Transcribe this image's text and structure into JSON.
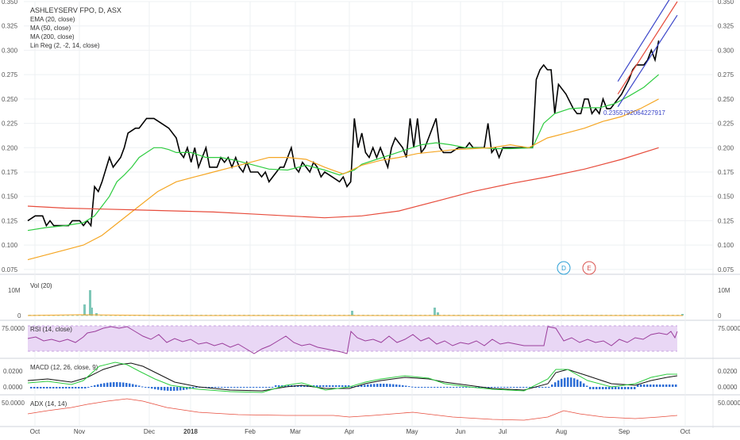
{
  "chart_data": {
    "type": "line",
    "title": "ASHLEYSERV FPO, D, ASX",
    "indicator_legend": [
      "EMA (20, close)",
      "MA (50, close)",
      "MA (200, close)",
      "Lin Reg (2, -2, 14, close)"
    ],
    "linreg_value_label": "0.2355792064227917",
    "markers": [
      "D",
      "E"
    ],
    "x_tick_labels": [
      "Oct",
      "Nov",
      "Dec",
      "2018",
      "Feb",
      "Mar",
      "Apr",
      "May",
      "Jun",
      "Jul",
      "Aug",
      "Sep",
      "Oct"
    ],
    "price_axis": {
      "ylim": [
        0.07,
        0.35
      ],
      "ticks": [
        "0.075",
        "0.100",
        "0.125",
        "0.150",
        "0.175",
        "0.200",
        "0.225",
        "0.250",
        "0.275",
        "0.300",
        "0.325",
        "0.350"
      ]
    },
    "panels": {
      "volume": {
        "label": "Vol (20)",
        "tick_labels": [
          "10M",
          "0"
        ]
      },
      "rsi": {
        "label": "RSI (14, close)",
        "tick_label": "75.0000"
      },
      "macd": {
        "label": "MACD (12, 26, close, 9)",
        "tick_labels": [
          "0.0200",
          "0.0000"
        ]
      },
      "adx": {
        "label": "ADX (14, 14)",
        "tick_label": "50.0000"
      }
    },
    "series": [
      {
        "name": "Price",
        "color": "#000000",
        "points": [
          [
            0,
            0.125
          ],
          [
            2,
            0.13
          ],
          [
            4,
            0.13
          ],
          [
            5,
            0.12
          ],
          [
            6,
            0.125
          ],
          [
            7,
            0.12
          ],
          [
            9,
            0.12
          ],
          [
            11,
            0.12
          ],
          [
            12,
            0.125
          ],
          [
            14,
            0.125
          ],
          [
            15,
            0.12
          ],
          [
            16,
            0.125
          ],
          [
            17,
            0.12
          ],
          [
            18,
            0.16
          ],
          [
            19,
            0.155
          ],
          [
            20,
            0.165
          ],
          [
            22,
            0.19
          ],
          [
            23,
            0.18
          ],
          [
            25,
            0.19
          ],
          [
            26,
            0.2
          ],
          [
            27,
            0.215
          ],
          [
            29,
            0.22
          ],
          [
            30,
            0.22
          ],
          [
            32,
            0.23
          ],
          [
            34,
            0.23
          ],
          [
            36,
            0.225
          ],
          [
            38,
            0.22
          ],
          [
            40,
            0.21
          ],
          [
            41,
            0.195
          ],
          [
            42,
            0.19
          ],
          [
            43,
            0.2
          ],
          [
            44,
            0.185
          ],
          [
            45,
            0.2
          ],
          [
            46,
            0.18
          ],
          [
            47,
            0.19
          ],
          [
            48,
            0.2
          ],
          [
            49,
            0.18
          ],
          [
            51,
            0.18
          ],
          [
            52,
            0.19
          ],
          [
            53,
            0.185
          ],
          [
            54,
            0.19
          ],
          [
            55,
            0.18
          ],
          [
            56,
            0.19
          ],
          [
            57,
            0.18
          ],
          [
            58,
            0.175
          ],
          [
            59,
            0.185
          ],
          [
            60,
            0.175
          ],
          [
            62,
            0.175
          ],
          [
            63,
            0.17
          ],
          [
            64,
            0.175
          ],
          [
            65,
            0.165
          ],
          [
            66,
            0.17
          ],
          [
            67,
            0.175
          ],
          [
            68,
            0.18
          ],
          [
            69,
            0.18
          ],
          [
            70,
            0.19
          ],
          [
            71,
            0.2
          ],
          [
            72,
            0.18
          ],
          [
            73,
            0.175
          ],
          [
            74,
            0.185
          ],
          [
            75,
            0.18
          ],
          [
            76,
            0.175
          ],
          [
            77,
            0.185
          ],
          [
            78,
            0.18
          ],
          [
            79,
            0.17
          ],
          [
            80,
            0.175
          ],
          [
            82,
            0.17
          ],
          [
            84,
            0.165
          ],
          [
            85,
            0.17
          ],
          [
            86,
            0.16
          ],
          [
            87,
            0.165
          ],
          [
            88,
            0.23
          ],
          [
            89,
            0.2
          ],
          [
            90,
            0.215
          ],
          [
            91,
            0.195
          ],
          [
            92,
            0.19
          ],
          [
            93,
            0.2
          ],
          [
            94,
            0.19
          ],
          [
            95,
            0.2
          ],
          [
            97,
            0.18
          ],
          [
            98,
            0.2
          ],
          [
            99,
            0.21
          ],
          [
            100,
            0.205
          ],
          [
            101,
            0.2
          ],
          [
            102,
            0.19
          ],
          [
            103,
            0.23
          ],
          [
            104,
            0.2
          ],
          [
            105,
            0.23
          ],
          [
            106,
            0.195
          ],
          [
            107,
            0.2
          ],
          [
            108,
            0.21
          ],
          [
            109,
            0.22
          ],
          [
            110,
            0.23
          ],
          [
            111,
            0.2
          ],
          [
            112,
            0.195
          ],
          [
            114,
            0.195
          ],
          [
            116,
            0.2
          ],
          [
            118,
            0.2
          ],
          [
            119,
            0.205
          ],
          [
            120,
            0.2
          ],
          [
            121,
            0.2
          ],
          [
            123,
            0.2
          ],
          [
            124,
            0.225
          ],
          [
            125,
            0.195
          ],
          [
            126,
            0.2
          ],
          [
            127,
            0.19
          ],
          [
            128,
            0.2
          ],
          [
            130,
            0.2
          ],
          [
            134,
            0.2
          ],
          [
            136,
            0.2
          ],
          [
            137,
            0.27
          ],
          [
            138,
            0.28
          ],
          [
            139,
            0.285
          ],
          [
            140,
            0.28
          ],
          [
            141,
            0.28
          ],
          [
            142,
            0.235
          ],
          [
            143,
            0.265
          ],
          [
            145,
            0.255
          ],
          [
            147,
            0.24
          ],
          [
            148,
            0.235
          ],
          [
            149,
            0.235
          ],
          [
            150,
            0.25
          ],
          [
            151,
            0.25
          ],
          [
            152,
            0.235
          ],
          [
            153,
            0.24
          ],
          [
            154,
            0.235
          ],
          [
            155,
            0.25
          ],
          [
            156,
            0.24
          ],
          [
            157,
            0.24
          ],
          [
            159,
            0.25
          ],
          [
            160,
            0.255
          ],
          [
            162,
            0.27
          ],
          [
            163,
            0.28
          ],
          [
            164,
            0.285
          ],
          [
            166,
            0.285
          ],
          [
            167,
            0.29
          ],
          [
            168,
            0.3
          ],
          [
            169,
            0.29
          ],
          [
            170,
            0.31
          ]
        ]
      },
      {
        "name": "EMA (20, close)",
        "color": "#2ecc40",
        "points": [
          [
            0,
            0.115
          ],
          [
            5,
            0.118
          ],
          [
            10,
            0.12
          ],
          [
            15,
            0.123
          ],
          [
            18,
            0.13
          ],
          [
            20,
            0.14
          ],
          [
            22,
            0.15
          ],
          [
            24,
            0.165
          ],
          [
            26,
            0.172
          ],
          [
            28,
            0.18
          ],
          [
            30,
            0.19
          ],
          [
            32,
            0.195
          ],
          [
            34,
            0.2
          ],
          [
            36,
            0.2
          ],
          [
            38,
            0.198
          ],
          [
            40,
            0.195
          ],
          [
            44,
            0.195
          ],
          [
            48,
            0.19
          ],
          [
            52,
            0.19
          ],
          [
            56,
            0.187
          ],
          [
            60,
            0.183
          ],
          [
            65,
            0.178
          ],
          [
            70,
            0.177
          ],
          [
            75,
            0.182
          ],
          [
            80,
            0.177
          ],
          [
            84,
            0.172
          ],
          [
            88,
            0.177
          ],
          [
            90,
            0.183
          ],
          [
            94,
            0.188
          ],
          [
            98,
            0.193
          ],
          [
            102,
            0.198
          ],
          [
            106,
            0.203
          ],
          [
            110,
            0.205
          ],
          [
            114,
            0.203
          ],
          [
            118,
            0.2
          ],
          [
            122,
            0.2
          ],
          [
            126,
            0.199
          ],
          [
            130,
            0.199
          ],
          [
            136,
            0.2
          ],
          [
            139,
            0.225
          ],
          [
            142,
            0.235
          ],
          [
            146,
            0.24
          ],
          [
            150,
            0.241
          ],
          [
            154,
            0.241
          ],
          [
            158,
            0.245
          ],
          [
            162,
            0.253
          ],
          [
            166,
            0.262
          ],
          [
            170,
            0.275
          ]
        ]
      },
      {
        "name": "MA (50, close)",
        "color": "#f5a623",
        "points": [
          [
            0,
            0.085
          ],
          [
            10,
            0.095
          ],
          [
            15,
            0.1
          ],
          [
            20,
            0.11
          ],
          [
            25,
            0.125
          ],
          [
            30,
            0.14
          ],
          [
            35,
            0.155
          ],
          [
            40,
            0.165
          ],
          [
            45,
            0.17
          ],
          [
            50,
            0.175
          ],
          [
            55,
            0.18
          ],
          [
            60,
            0.185
          ],
          [
            65,
            0.19
          ],
          [
            70,
            0.19
          ],
          [
            75,
            0.188
          ],
          [
            80,
            0.18
          ],
          [
            85,
            0.173
          ],
          [
            90,
            0.182
          ],
          [
            95,
            0.187
          ],
          [
            100,
            0.19
          ],
          [
            105,
            0.194
          ],
          [
            110,
            0.196
          ],
          [
            115,
            0.198
          ],
          [
            120,
            0.199
          ],
          [
            125,
            0.2
          ],
          [
            130,
            0.203
          ],
          [
            135,
            0.2
          ],
          [
            140,
            0.21
          ],
          [
            145,
            0.215
          ],
          [
            150,
            0.22
          ],
          [
            155,
            0.227
          ],
          [
            160,
            0.232
          ],
          [
            165,
            0.24
          ],
          [
            170,
            0.25
          ]
        ]
      },
      {
        "name": "MA (200, close)",
        "color": "#e74c3c",
        "points": [
          [
            0,
            0.14
          ],
          [
            10,
            0.138
          ],
          [
            20,
            0.137
          ],
          [
            30,
            0.136
          ],
          [
            40,
            0.135
          ],
          [
            50,
            0.134
          ],
          [
            60,
            0.132
          ],
          [
            70,
            0.13
          ],
          [
            80,
            0.128
          ],
          [
            90,
            0.13
          ],
          [
            100,
            0.135
          ],
          [
            110,
            0.145
          ],
          [
            120,
            0.155
          ],
          [
            130,
            0.163
          ],
          [
            140,
            0.17
          ],
          [
            150,
            0.178
          ],
          [
            160,
            0.188
          ],
          [
            170,
            0.2
          ]
        ]
      },
      {
        "name": "Lin Reg (2, -2, 14, close)",
        "color": "#e74c3c",
        "points": [
          [
            159,
            0.255
          ],
          [
            175,
            0.35
          ]
        ]
      },
      {
        "name": "Lin Reg upper",
        "color": "#3b46c9",
        "points": [
          [
            159,
            0.268
          ],
          [
            175,
            0.365
          ]
        ]
      },
      {
        "name": "Lin Reg lower",
        "color": "#3b46c9",
        "points": [
          [
            159,
            0.242
          ],
          [
            175,
            0.336
          ]
        ]
      }
    ]
  }
}
